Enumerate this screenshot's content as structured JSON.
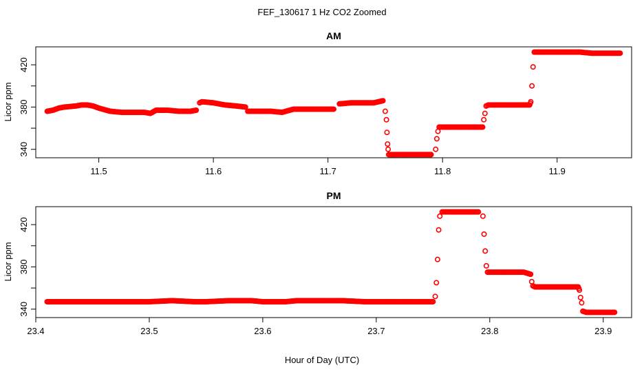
{
  "figure": {
    "title": "FEF_130617  1 Hz CO2 Zoomed",
    "xlabel": "Hour of Day (UTC)"
  },
  "chart_data": [
    {
      "type": "scatter",
      "title": "AM",
      "xlabel": "Hour of Day (UTC)",
      "ylabel": "Licor ppm",
      "xlim": [
        11.445,
        11.965
      ],
      "ylim": [
        332,
        437
      ],
      "xticks": [
        "11.5",
        "11.6",
        "11.7",
        "11.8",
        "11.9"
      ],
      "xtick_values": [
        11.5,
        11.6,
        11.7,
        11.8,
        11.9
      ],
      "yticks": [
        "340",
        "380",
        "420"
      ],
      "ytick_values": [
        340,
        380,
        420
      ],
      "grid": false,
      "marker": "open-circle",
      "color": "#ff0000",
      "series": [
        {
          "x": [
            11.455,
            11.46,
            11.465,
            11.47,
            11.48,
            11.485,
            11.49,
            11.495,
            11.5,
            11.51,
            11.52,
            11.53,
            11.54,
            11.545,
            11.55,
            11.56,
            11.57,
            11.58,
            11.585,
            11.588,
            11.59,
            11.6,
            11.61,
            11.62,
            11.628,
            11.63,
            11.64,
            11.65,
            11.66,
            11.67,
            11.675,
            11.69,
            11.7,
            11.705,
            11.71,
            11.72,
            11.73,
            11.74,
            11.748,
            11.75,
            11.751,
            11.7515,
            11.752,
            11.7525,
            11.753,
            11.755,
            11.76,
            11.77,
            11.78,
            11.79,
            11.794,
            11.795,
            11.796,
            11.797,
            11.8,
            11.81,
            11.82,
            11.83,
            11.835,
            11.836,
            11.837,
            11.838,
            11.84,
            11.85,
            11.86,
            11.87,
            11.876,
            11.877,
            11.878,
            11.879,
            11.88,
            11.89,
            11.9,
            11.91,
            11.92,
            11.93,
            11.94,
            11.95,
            11.955
          ],
          "y": [
            376,
            377,
            379,
            380,
            381,
            382,
            382,
            381,
            379,
            376,
            375,
            375,
            375,
            374,
            377,
            377,
            376,
            376,
            377,
            384,
            385,
            384,
            382,
            381,
            380,
            376,
            376,
            376,
            375,
            378,
            378,
            378,
            378,
            378,
            383,
            384,
            384,
            384,
            386,
            376,
            368,
            356,
            345,
            340,
            335,
            335,
            335,
            335,
            335,
            335,
            340,
            350,
            357,
            361,
            361,
            361,
            361,
            361,
            361,
            368,
            374,
            381,
            382,
            382,
            382,
            382,
            382,
            385,
            400,
            418,
            432,
            432,
            432,
            432,
            432,
            431,
            431,
            431,
            431
          ]
        }
      ]
    },
    {
      "type": "scatter",
      "title": "PM",
      "xlabel": "Hour of Day (UTC)",
      "ylabel": "Licor ppm",
      "xlim": [
        23.4,
        23.925
      ],
      "ylim": [
        332,
        437
      ],
      "xticks": [
        "23.4",
        "23.5",
        "23.6",
        "23.7",
        "23.8",
        "23.9"
      ],
      "xtick_values": [
        23.4,
        23.5,
        23.6,
        23.7,
        23.8,
        23.9
      ],
      "yticks": [
        "340",
        "380",
        "420"
      ],
      "ytick_values": [
        340,
        380,
        420
      ],
      "grid": false,
      "marker": "open-circle",
      "color": "#ff0000",
      "series": [
        {
          "x": [
            23.41,
            23.42,
            23.44,
            23.46,
            23.48,
            23.5,
            23.52,
            23.54,
            23.55,
            23.57,
            23.59,
            23.6,
            23.62,
            23.63,
            23.65,
            23.67,
            23.69,
            23.71,
            23.73,
            23.75,
            23.752,
            23.753,
            23.754,
            23.755,
            23.756,
            23.758,
            23.76,
            23.77,
            23.78,
            23.79,
            23.794,
            23.795,
            23.796,
            23.797,
            23.798,
            23.8,
            23.81,
            23.82,
            23.83,
            23.836,
            23.837,
            23.838,
            23.84,
            23.85,
            23.86,
            23.87,
            23.878,
            23.879,
            23.88,
            23.881,
            23.882,
            23.885,
            23.89,
            23.9,
            23.91
          ],
          "y": [
            347,
            347,
            347,
            347,
            347,
            347,
            348,
            347,
            347,
            348,
            348,
            347,
            347,
            348,
            348,
            348,
            347,
            347,
            347,
            347,
            352,
            365,
            387,
            415,
            428,
            432,
            432,
            432,
            432,
            432,
            428,
            411,
            395,
            381,
            375,
            375,
            375,
            375,
            375,
            373,
            366,
            362,
            361,
            361,
            361,
            361,
            361,
            358,
            351,
            346,
            338,
            337,
            337,
            337,
            337
          ]
        }
      ]
    }
  ]
}
